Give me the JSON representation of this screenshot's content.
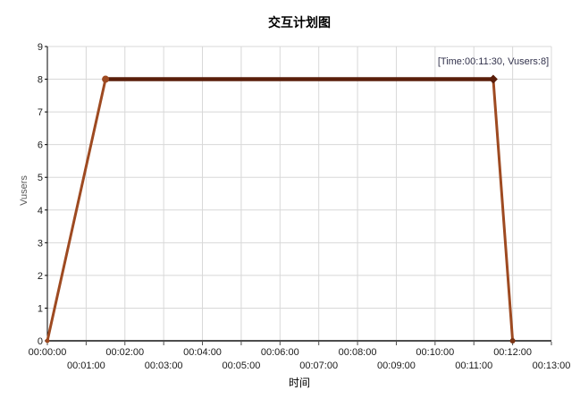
{
  "chart_data": {
    "type": "line",
    "title": "交互计划图",
    "xlabel": "时间",
    "ylabel": "Vusers",
    "xlim_seconds": [
      0,
      780
    ],
    "ylim": [
      0,
      9
    ],
    "grid": true,
    "x_tick_interval_seconds": 60,
    "x_tick_labels": [
      "00:00:00",
      "00:01:00",
      "00:02:00",
      "00:03:00",
      "00:04:00",
      "00:05:00",
      "00:06:00",
      "00:07:00",
      "00:08:00",
      "00:09:00",
      "00:10:00",
      "00:11:00",
      "00:12:00",
      "00:13:00"
    ],
    "y_tick_labels": [
      "0",
      "1",
      "2",
      "3",
      "4",
      "5",
      "6",
      "7",
      "8",
      "9"
    ],
    "points": [
      {
        "time": "00:00:00",
        "seconds": 0,
        "vusers": 0,
        "marker": {
          "shape": "dot",
          "size": 2.5,
          "color": "#9e4a21"
        }
      },
      {
        "time": "00:01:30",
        "seconds": 90,
        "vusers": 8,
        "marker": {
          "shape": "circle",
          "size": 4,
          "color": "#9e4a21"
        }
      },
      {
        "time": "00:11:30",
        "seconds": 690,
        "vusers": 8,
        "marker": {
          "shape": "diamond",
          "size": 5,
          "color": "#5a1e0a"
        }
      },
      {
        "time": "00:12:00",
        "seconds": 720,
        "vusers": 0,
        "marker": {
          "shape": "dot",
          "size": 3,
          "color": "#7c3514"
        }
      }
    ],
    "segments": [
      {
        "name": "ramp-up",
        "from": 0,
        "to": 1,
        "color": "#9e4a21",
        "width": 3
      },
      {
        "name": "duration",
        "from": 1,
        "to": 2,
        "color": "#5a1e0a",
        "width": 4.5
      },
      {
        "name": "ramp-down",
        "from": 2,
        "to": 3,
        "color": "#9e4a21",
        "width": 3
      }
    ],
    "annotation": {
      "text": "[Time:00:11:30, Vusers:8]",
      "seconds": 690,
      "vusers": 8,
      "color": "#33334d"
    },
    "colors": {
      "background": "#ffffff",
      "gridline": "#d8d8d8",
      "x_axis": "#4d4d4d",
      "y_axis": "#000000",
      "tick_label": "#1a1a1a",
      "title": "#000000"
    }
  }
}
